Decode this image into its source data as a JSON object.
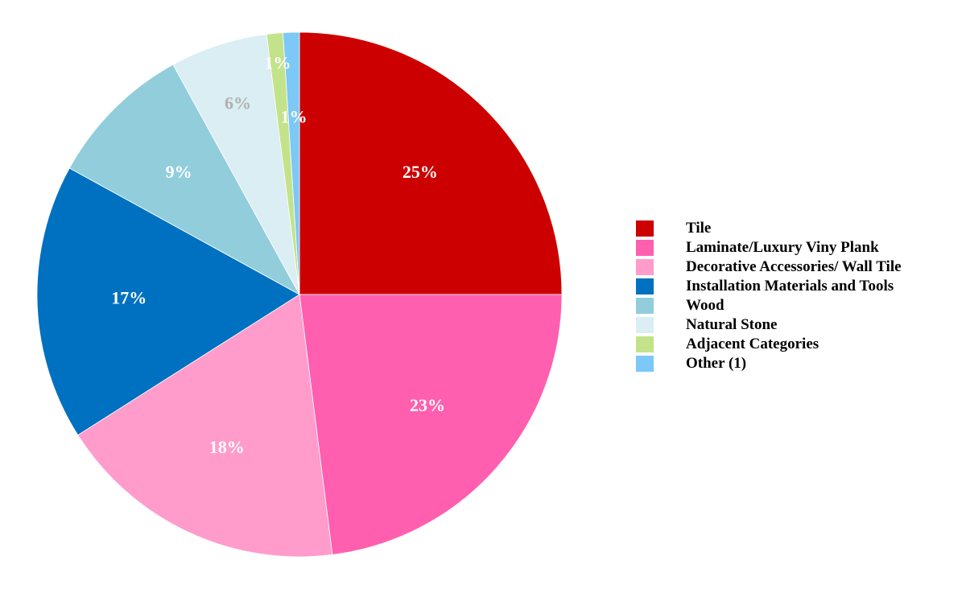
{
  "chart_data": {
    "type": "pie",
    "start_angle_deg": 0,
    "direction": "clockwise",
    "legend_position": "right",
    "slices": [
      {
        "name": "Tile",
        "value": 25,
        "label": "25%",
        "color": "#cc0000",
        "label_color": "#ffffff"
      },
      {
        "name": "Laminate/Luxury Viny Plank",
        "value": 23,
        "label": "23%",
        "color": "#ff5fae",
        "label_color": "#ffffff"
      },
      {
        "name": "Decorative Accessories/ Wall Tile",
        "value": 18,
        "label": "18%",
        "color": "#ff9ccc",
        "label_color": "#ffffff"
      },
      {
        "name": "Installation Materials and Tools",
        "value": 17,
        "label": "17%",
        "color": "#0070c0",
        "label_color": "#ffffff"
      },
      {
        "name": "Wood",
        "value": 9,
        "label": "9%",
        "color": "#92cddc",
        "label_color": "#ffffff"
      },
      {
        "name": "Natural Stone",
        "value": 6,
        "label": "6%",
        "color": "#daeef3",
        "label_color": "#b0b0b0"
      },
      {
        "name": "Adjacent Categories",
        "value": 1,
        "label": "1%",
        "color": "#c3e38a",
        "label_color": "#ffffff"
      },
      {
        "name": "Other (1)",
        "value": 1,
        "label": "1%",
        "color": "#7cc8f7",
        "label_color": "#ffffff"
      }
    ]
  }
}
